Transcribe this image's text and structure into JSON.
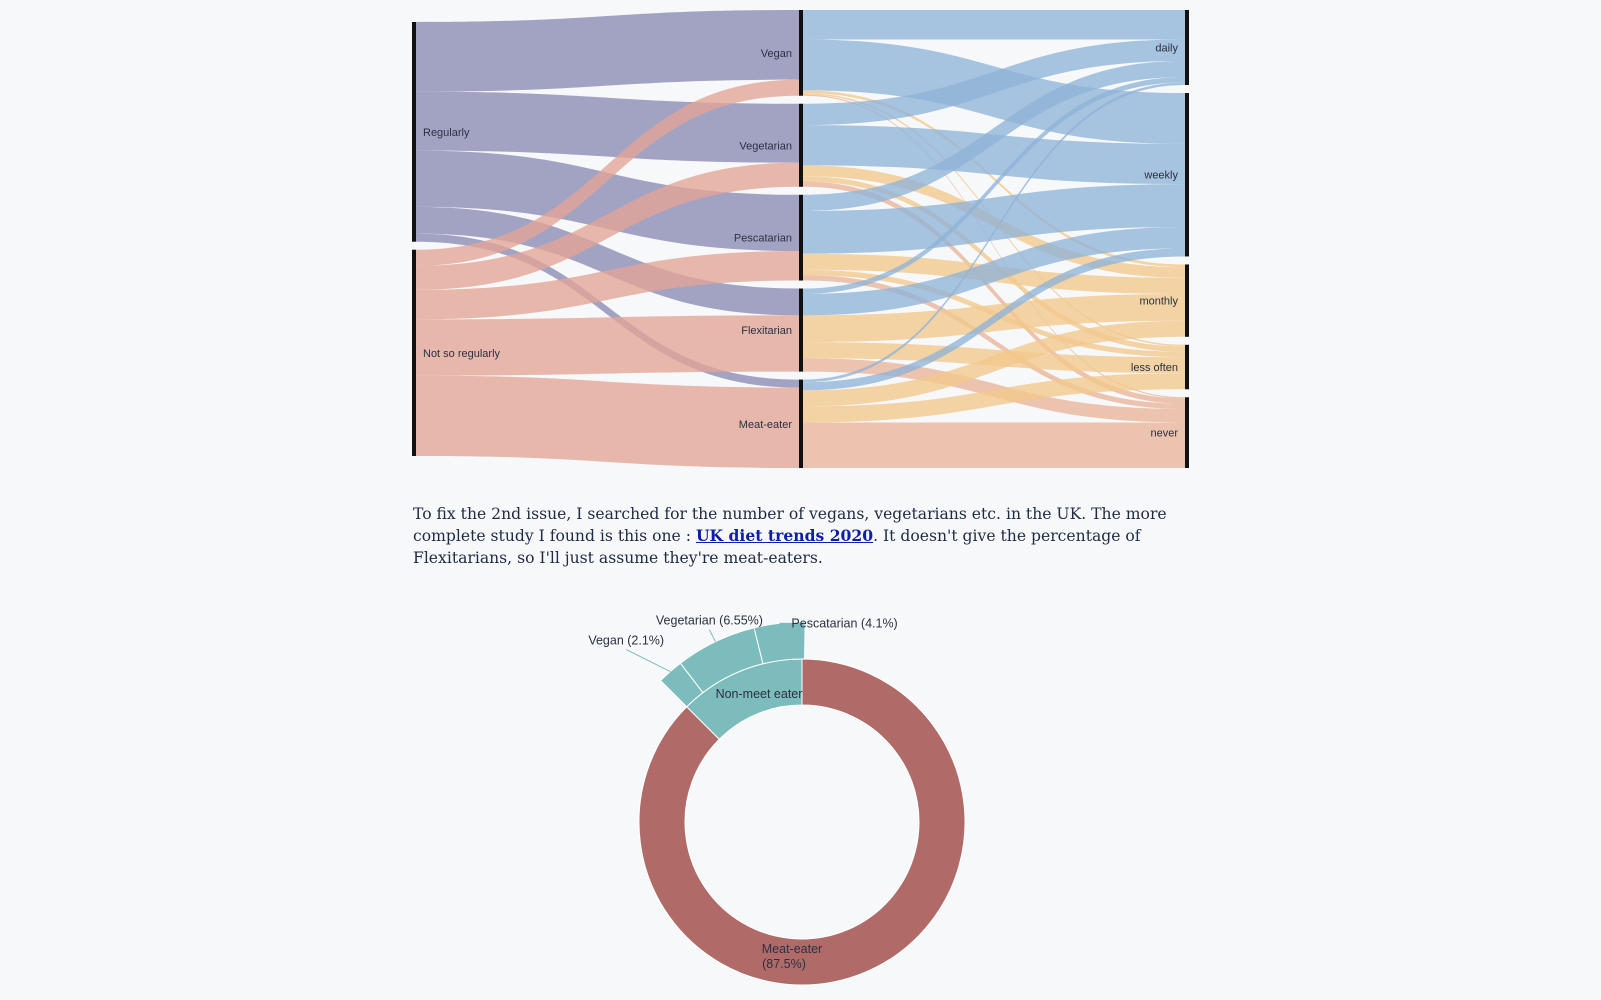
{
  "paragraph": {
    "before": "To fix the 2nd issue, I searched for the number of vegans, vegetarians etc. in the UK. The more complete study I found is this one : ",
    "link_text": "UK diet trends 2020",
    "after": ". It doesn't give the percentage of Flexitarians, so I'll just assume they're meat-eaters."
  },
  "colors": {
    "regularly": "#8b8bb3",
    "not_so_regularly": "#e3a496",
    "daily_weekly": "#8fb4d7",
    "monthly_less": "#f2c88c",
    "never": "#e8b398",
    "sunburst_non_meat": "#7cbcbc",
    "sunburst_meat": "#b06b68"
  },
  "chart_data": [
    {
      "type": "sankey",
      "columns": [
        [
          "Regularly",
          "Not so regularly"
        ],
        [
          "Vegan",
          "Vegetarian",
          "Pescatarian",
          "Flexitarian",
          "Meat-eater"
        ],
        [
          "daily",
          "weekly",
          "monthly",
          "less often",
          "never"
        ]
      ],
      "links": [
        {
          "source": "Regularly",
          "target": "Vegan",
          "value": 13
        },
        {
          "source": "Regularly",
          "target": "Vegetarian",
          "value": 11
        },
        {
          "source": "Regularly",
          "target": "Pescatarian",
          "value": 10.5
        },
        {
          "source": "Regularly",
          "target": "Flexitarian",
          "value": 5
        },
        {
          "source": "Regularly",
          "target": "Meat-eater",
          "value": 1.5
        },
        {
          "source": "Not so regularly",
          "target": "Vegan",
          "value": 3
        },
        {
          "source": "Not so regularly",
          "target": "Vegetarian",
          "value": 4.5
        },
        {
          "source": "Not so regularly",
          "target": "Pescatarian",
          "value": 5.5
        },
        {
          "source": "Not so regularly",
          "target": "Flexitarian",
          "value": 10.5
        },
        {
          "source": "Not so regularly",
          "target": "Meat-eater",
          "value": 15
        },
        {
          "source": "Vegan",
          "target": "daily",
          "value": 5.5
        },
        {
          "source": "Vegan",
          "target": "weekly",
          "value": 9.5
        },
        {
          "source": "Vegan",
          "target": "monthly",
          "value": 0.5
        },
        {
          "source": "Vegan",
          "target": "less often",
          "value": 0.3
        },
        {
          "source": "Vegan",
          "target": "never",
          "value": 0.2
        },
        {
          "source": "Vegetarian",
          "target": "daily",
          "value": 4
        },
        {
          "source": "Vegetarian",
          "target": "weekly",
          "value": 7.5
        },
        {
          "source": "Vegetarian",
          "target": "monthly",
          "value": 2
        },
        {
          "source": "Vegetarian",
          "target": "less often",
          "value": 1
        },
        {
          "source": "Vegetarian",
          "target": "never",
          "value": 1
        },
        {
          "source": "Pescatarian",
          "target": "daily",
          "value": 3
        },
        {
          "source": "Pescatarian",
          "target": "weekly",
          "value": 8
        },
        {
          "source": "Pescatarian",
          "target": "monthly",
          "value": 3
        },
        {
          "source": "Pescatarian",
          "target": "less often",
          "value": 1
        },
        {
          "source": "Pescatarian",
          "target": "never",
          "value": 1
        },
        {
          "source": "Flexitarian",
          "target": "daily",
          "value": 1
        },
        {
          "source": "Flexitarian",
          "target": "weekly",
          "value": 4
        },
        {
          "source": "Flexitarian",
          "target": "monthly",
          "value": 5
        },
        {
          "source": "Flexitarian",
          "target": "less often",
          "value": 3
        },
        {
          "source": "Flexitarian",
          "target": "never",
          "value": 2.5
        },
        {
          "source": "Meat-eater",
          "target": "daily",
          "value": 0.5
        },
        {
          "source": "Meat-eater",
          "target": "weekly",
          "value": 1.5
        },
        {
          "source": "Meat-eater",
          "target": "monthly",
          "value": 3
        },
        {
          "source": "Meat-eater",
          "target": "less often",
          "value": 3
        },
        {
          "source": "Meat-eater",
          "target": "never",
          "value": 8.5
        }
      ]
    },
    {
      "type": "sunburst",
      "inner": [
        {
          "label": "Non-meet eater",
          "value": 12.5
        },
        {
          "label": "Meat-eater",
          "value": 87.5,
          "pct_label": "(87.5%)"
        }
      ],
      "outer": [
        {
          "parent": "Non-meet eater",
          "label": "Vegan (2.1%)",
          "value": 2.1
        },
        {
          "parent": "Non-meet eater",
          "label": "Vegetarian (6.55%)",
          "value": 6.55
        },
        {
          "parent": "Non-meet eater",
          "label": "Pescatarian (4.1%)",
          "value": 4.1
        }
      ]
    }
  ]
}
